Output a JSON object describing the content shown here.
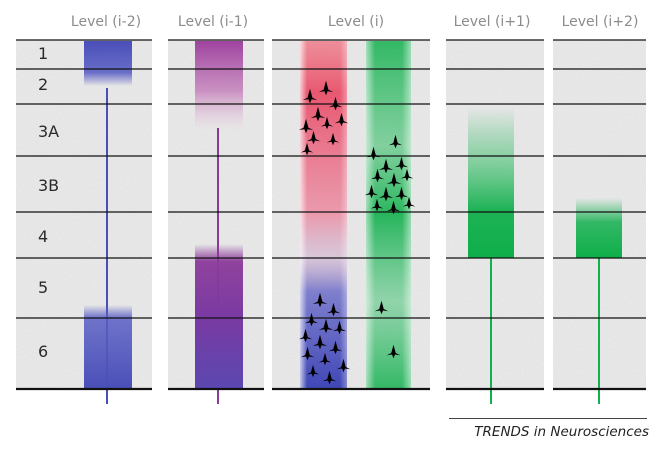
{
  "columns": [
    {
      "title": "Level (i-2)"
    },
    {
      "title": "Level (i-1)"
    },
    {
      "title": "Level (i)"
    },
    {
      "title": "Level (i+1)"
    },
    {
      "title": "Level (i+2)"
    }
  ],
  "layers": [
    "1",
    "2",
    "3A",
    "3B",
    "4",
    "5",
    "6"
  ],
  "footer": "TRENDS in Neurosciences",
  "colors": {
    "blue": "#4a4fb8",
    "purple": "#8b3a9a",
    "pink": "#d8a3c6",
    "red": "#e8506a",
    "green": "#13b04e",
    "line": "#111111",
    "panel": "#e4e4e4"
  }
}
